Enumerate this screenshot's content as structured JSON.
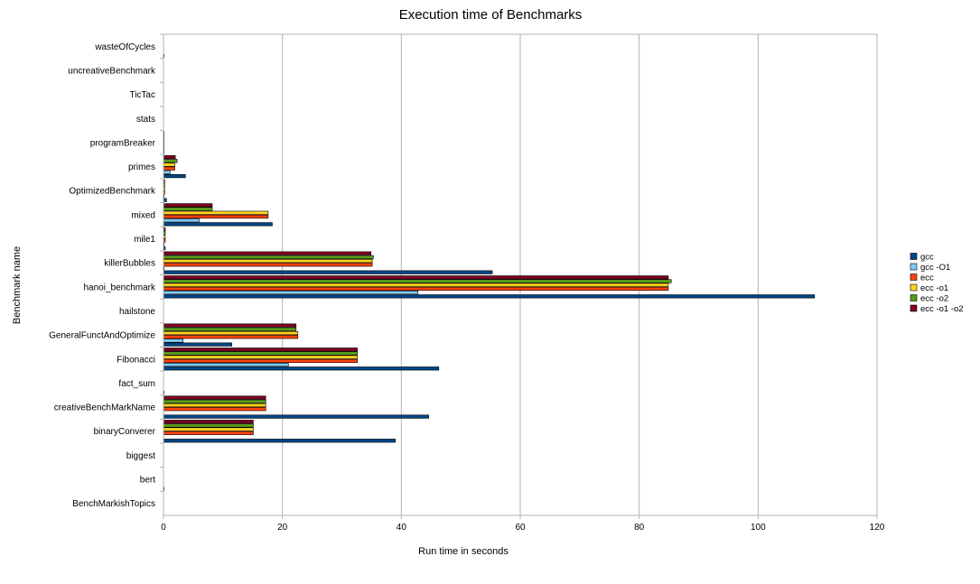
{
  "chart_data": {
    "type": "bar",
    "orientation": "horizontal",
    "title": "Execution time of Benchmarks",
    "xlabel": "Run time in seconds",
    "ylabel": "Benchmark name",
    "xlim": [
      0,
      120
    ],
    "xticks": [
      0,
      20,
      40,
      60,
      80,
      100,
      120
    ],
    "grid": true,
    "legend_position": "right",
    "categories": [
      "BenchMarkishTopics",
      "bert",
      "biggest",
      "binaryConverer",
      "creativeBenchMarkName",
      "fact_sum",
      "Fibonacci",
      "GeneralFunctAndOptimize",
      "hailstone",
      "hanoi_benchmark",
      "killerBubbles",
      "mile1",
      "mixed",
      "OptimizedBenchmark",
      "primes",
      "programBreaker",
      "stats",
      "TicTac",
      "uncreativeBenchmark",
      "wasteOfCycles"
    ],
    "series": [
      {
        "name": "gcc",
        "color": "#004586",
        "values": [
          0,
          0.1,
          0,
          39,
          44.6,
          0.1,
          46.3,
          11.5,
          0,
          109.5,
          55.3,
          0.3,
          18.3,
          0.5,
          3.7,
          0.1,
          0,
          0,
          0,
          0.1
        ]
      },
      {
        "name": "gcc -O1",
        "color": "#83caff",
        "values": [
          0,
          0,
          0,
          0,
          0,
          0,
          21,
          3.3,
          0,
          42.8,
          0.1,
          0.1,
          6,
          0.1,
          1.1,
          0.1,
          0,
          0,
          0,
          0
        ]
      },
      {
        "name": "ecc",
        "color": "#ff420e",
        "values": [
          0,
          0,
          0,
          15.1,
          17.2,
          0,
          32.6,
          22.6,
          0,
          84.9,
          35.1,
          0.3,
          17.6,
          0.2,
          1.9,
          0.1,
          0,
          0,
          0,
          0
        ]
      },
      {
        "name": "ecc -o1",
        "color": "#ffd320",
        "values": [
          0,
          0,
          0,
          15.1,
          17.2,
          0,
          32.6,
          22.6,
          0,
          84.9,
          35.1,
          0.3,
          17.6,
          0.2,
          1.9,
          0.1,
          0,
          0,
          0,
          0
        ]
      },
      {
        "name": "ecc -o2",
        "color": "#579d1c",
        "values": [
          0,
          0,
          0,
          15.1,
          17.2,
          0,
          32.6,
          22.3,
          0,
          85.4,
          35.3,
          0.3,
          8.2,
          0.2,
          2.3,
          0.1,
          0,
          0,
          0,
          0
        ]
      },
      {
        "name": "ecc -o1 -o2",
        "color": "#7e0021",
        "values": [
          0,
          0,
          0,
          15.1,
          17.2,
          0,
          32.6,
          22.3,
          0,
          84.9,
          34.9,
          0.3,
          8.2,
          0.2,
          2,
          0.1,
          0,
          0,
          0,
          0
        ]
      }
    ]
  }
}
